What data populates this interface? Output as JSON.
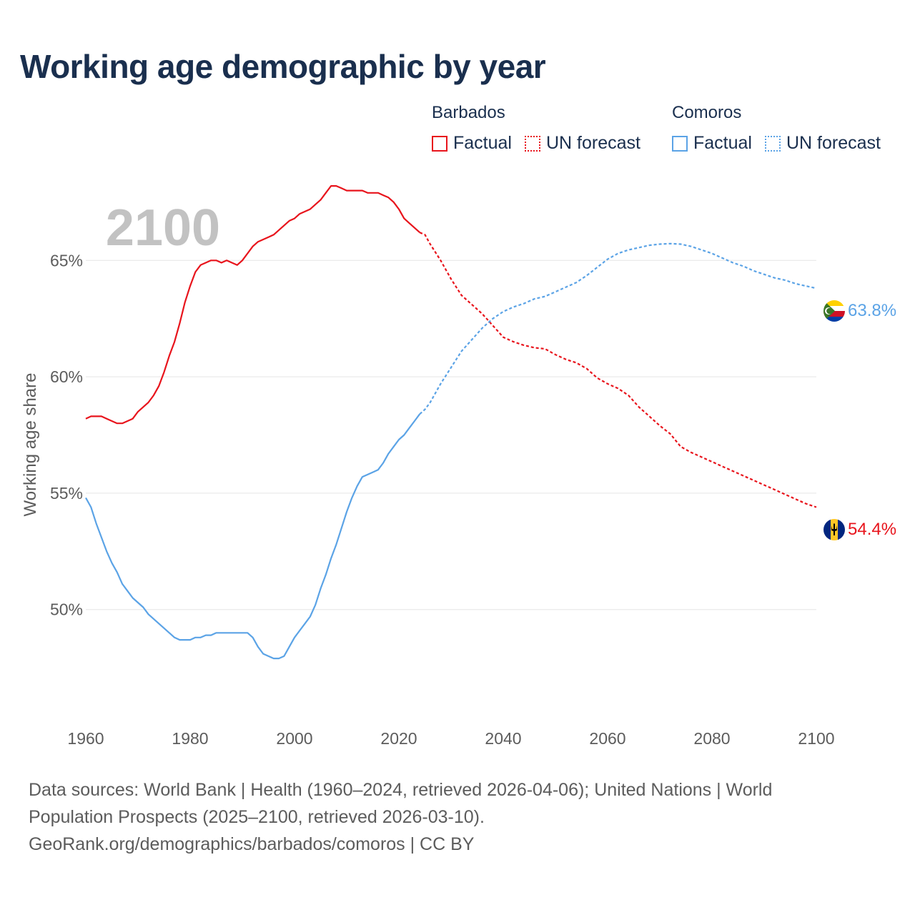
{
  "title": "Working age demographic by year",
  "legend": {
    "barbados": {
      "name": "Barbados",
      "factual": "Factual",
      "forecast": "UN forecast"
    },
    "comoros": {
      "name": "Comoros",
      "factual": "Factual",
      "forecast": "UN forecast"
    }
  },
  "colors": {
    "barbados": "#e8141c",
    "comoros": "#5ba3e6",
    "title": "#1a2f4e",
    "grid": "#e5e5e5",
    "axis_text": "#5c5c5c",
    "year": "#c2c2c2"
  },
  "year_label": "2100",
  "end_labels": {
    "barbados": "54.4%",
    "comoros": "63.8%"
  },
  "sources": {
    "line1": "Data sources: World Bank | Health (1960–2024, retrieved 2026-04-06); United Nations | World",
    "line2": "Population Prospects (2025–2100, retrieved 2026-03-10).",
    "line3": "GeoRank.org/demographics/barbados/comoros | CC BY"
  },
  "chart_data": {
    "type": "line",
    "title": "Working age demographic by year",
    "xlabel": "",
    "ylabel": "Working age share",
    "xlim": [
      1960,
      2100
    ],
    "ylim": [
      46,
      69
    ],
    "x_ticks": [
      1960,
      1980,
      2000,
      2020,
      2040,
      2060,
      2080,
      2100
    ],
    "y_ticks": [
      50,
      55,
      60,
      65
    ],
    "y_tick_labels": [
      "50%",
      "55%",
      "60%",
      "65%"
    ],
    "grid": true,
    "series": [
      {
        "name": "Barbados",
        "factual": {
          "x": [
            1960,
            1961,
            1962,
            1963,
            1964,
            1965,
            1966,
            1967,
            1968,
            1969,
            1970,
            1971,
            1972,
            1973,
            1974,
            1975,
            1976,
            1977,
            1978,
            1979,
            1980,
            1981,
            1982,
            1983,
            1984,
            1985,
            1986,
            1987,
            1988,
            1989,
            1990,
            1991,
            1992,
            1993,
            1994,
            1995,
            1996,
            1997,
            1998,
            1999,
            2000,
            2001,
            2002,
            2003,
            2004,
            2005,
            2006,
            2007,
            2008,
            2009,
            2010,
            2011,
            2012,
            2013,
            2014,
            2015,
            2016,
            2017,
            2018,
            2019,
            2020,
            2021,
            2022,
            2023,
            2024
          ],
          "y": [
            58.2,
            58.3,
            58.3,
            58.3,
            58.2,
            58.1,
            58.0,
            58.0,
            58.1,
            58.2,
            58.5,
            58.7,
            58.9,
            59.2,
            59.6,
            60.2,
            60.9,
            61.5,
            62.3,
            63.2,
            63.9,
            64.5,
            64.8,
            64.9,
            65.0,
            65.0,
            64.9,
            65.0,
            64.9,
            64.8,
            65.0,
            65.3,
            65.6,
            65.8,
            65.9,
            66.0,
            66.1,
            66.3,
            66.5,
            66.7,
            66.8,
            67.0,
            67.1,
            67.2,
            67.4,
            67.6,
            67.9,
            68.2,
            68.2,
            68.1,
            68.0,
            68.0,
            68.0,
            68.0,
            67.9,
            67.9,
            67.9,
            67.8,
            67.7,
            67.5,
            67.2,
            66.8,
            66.6,
            66.4,
            66.2
          ]
        },
        "forecast": {
          "x": [
            2024,
            2025,
            2026,
            2028,
            2030,
            2032,
            2034,
            2036,
            2038,
            2040,
            2042,
            2044,
            2046,
            2048,
            2050,
            2052,
            2054,
            2056,
            2058,
            2060,
            2062,
            2064,
            2066,
            2068,
            2070,
            2072,
            2074,
            2076,
            2078,
            2080,
            2082,
            2084,
            2086,
            2088,
            2090,
            2092,
            2094,
            2096,
            2098,
            2100
          ],
          "y": [
            66.2,
            66.1,
            65.7,
            65.0,
            64.2,
            63.5,
            63.1,
            62.7,
            62.2,
            61.7,
            61.5,
            61.35,
            61.25,
            61.2,
            60.95,
            60.75,
            60.6,
            60.35,
            59.95,
            59.7,
            59.5,
            59.2,
            58.7,
            58.3,
            57.9,
            57.55,
            57.0,
            56.75,
            56.55,
            56.35,
            56.15,
            55.95,
            55.75,
            55.55,
            55.35,
            55.15,
            54.95,
            54.75,
            54.55,
            54.4
          ]
        }
      },
      {
        "name": "Comoros",
        "factual": {
          "x": [
            1960,
            1961,
            1962,
            1963,
            1964,
            1965,
            1966,
            1967,
            1968,
            1969,
            1970,
            1971,
            1972,
            1973,
            1974,
            1975,
            1976,
            1977,
            1978,
            1979,
            1980,
            1981,
            1982,
            1983,
            1984,
            1985,
            1986,
            1987,
            1988,
            1989,
            1990,
            1991,
            1992,
            1993,
            1994,
            1995,
            1996,
            1997,
            1998,
            1999,
            2000,
            2001,
            2002,
            2003,
            2004,
            2005,
            2006,
            2007,
            2008,
            2009,
            2010,
            2011,
            2012,
            2013,
            2014,
            2015,
            2016,
            2017,
            2018,
            2019,
            2020,
            2021,
            2022,
            2023,
            2024
          ],
          "y": [
            54.8,
            54.4,
            53.7,
            53.1,
            52.5,
            52.0,
            51.6,
            51.1,
            50.8,
            50.5,
            50.3,
            50.1,
            49.8,
            49.6,
            49.4,
            49.2,
            49.0,
            48.8,
            48.7,
            48.7,
            48.7,
            48.8,
            48.8,
            48.9,
            48.9,
            49.0,
            49.0,
            49.0,
            49.0,
            49.0,
            49.0,
            49.0,
            48.8,
            48.4,
            48.1,
            48.0,
            47.9,
            47.9,
            48.0,
            48.4,
            48.8,
            49.1,
            49.4,
            49.7,
            50.2,
            50.9,
            51.5,
            52.2,
            52.8,
            53.5,
            54.2,
            54.8,
            55.3,
            55.7,
            55.8,
            55.9,
            56.0,
            56.3,
            56.7,
            57.0,
            57.3,
            57.5,
            57.8,
            58.1,
            58.4
          ]
        },
        "forecast": {
          "x": [
            2024,
            2025,
            2026,
            2028,
            2030,
            2032,
            2034,
            2036,
            2038,
            2040,
            2042,
            2044,
            2046,
            2048,
            2050,
            2052,
            2054,
            2056,
            2058,
            2060,
            2062,
            2064,
            2066,
            2068,
            2070,
            2072,
            2074,
            2076,
            2078,
            2080,
            2082,
            2084,
            2086,
            2088,
            2090,
            2092,
            2094,
            2096,
            2098,
            2100
          ],
          "y": [
            58.4,
            58.6,
            58.9,
            59.7,
            60.4,
            61.1,
            61.6,
            62.1,
            62.5,
            62.8,
            63.0,
            63.15,
            63.35,
            63.45,
            63.65,
            63.85,
            64.05,
            64.35,
            64.7,
            65.05,
            65.3,
            65.45,
            65.55,
            65.65,
            65.7,
            65.72,
            65.7,
            65.6,
            65.45,
            65.3,
            65.1,
            64.9,
            64.75,
            64.55,
            64.4,
            64.25,
            64.15,
            64.0,
            63.9,
            63.8
          ]
        }
      }
    ]
  }
}
